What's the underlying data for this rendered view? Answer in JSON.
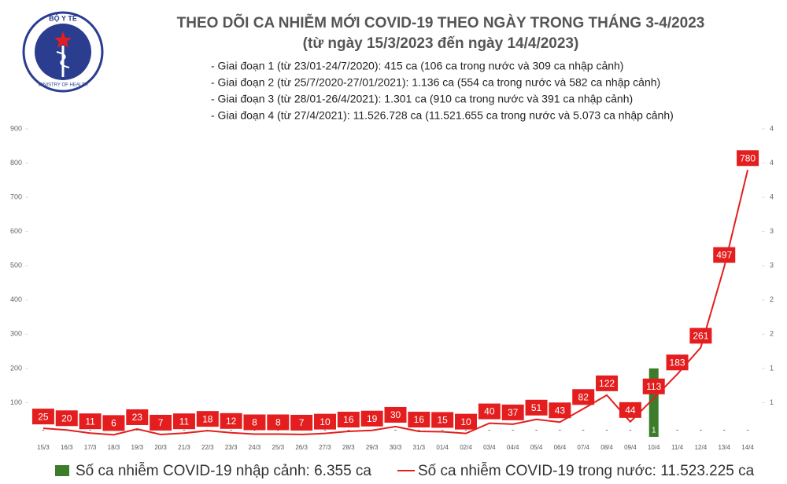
{
  "logo": {
    "top": "BỘ Y TẾ",
    "bottom": "MINISTRY OF HEALTH"
  },
  "chart_data": {
    "type": "bar-line",
    "title": "THEO DÕI CA NHIỄM MỚI COVID-19 THEO NGÀY TRONG THÁNG 3-4/2023",
    "subtitle": "(từ ngày 15/3/2023 đến ngày 14/4/2023)",
    "annotations": [
      "- Giai đoạn 1 (từ 23/01-24/7/2020): 415 ca (106 ca trong nước và 309 ca nhập cảnh)",
      "- Giai đoạn 2 (từ 25/7/2020-27/01/2021): 1.136 ca (554 ca trong nước và 582 ca nhập cảnh)",
      "- Giai đoạn 3 (từ 28/01-26/4/2021): 1.301 ca (910 ca trong nước và 391 ca nhập cảnh)",
      "- Giai đoạn 4 (từ 27/4/2021): 11.526.728 ca (11.521.655 ca trong nước và 5.073 ca nhập cảnh)"
    ],
    "categories": [
      "15/3",
      "16/3",
      "17/3",
      "18/3",
      "19/3",
      "20/3",
      "21/3",
      "22/3",
      "23/3",
      "24/3",
      "25/3",
      "26/3",
      "27/3",
      "28/3",
      "29/3",
      "30/3",
      "31/3",
      "01/4",
      "02/4",
      "03/4",
      "04/4",
      "05/4",
      "06/4",
      "07/4",
      "08/4",
      "09/4",
      "10/4",
      "11/4",
      "12/4",
      "13/4",
      "14/4"
    ],
    "series": [
      {
        "name": "Số ca nhiễm COVID-19 nhập cảnh: 6.355 ca",
        "type": "bar",
        "axis": "y2",
        "color": "#3b7d2b",
        "values": [
          0,
          0,
          0,
          0,
          0,
          0,
          0,
          0,
          0,
          0,
          0,
          0,
          0,
          0,
          0,
          0,
          0,
          0,
          0,
          0,
          0,
          0,
          0,
          0,
          0,
          0,
          1,
          0,
          0,
          0,
          0
        ],
        "value_labels": [
          "-",
          "-",
          "-",
          "-",
          "-",
          "-",
          "-",
          "-",
          "-",
          "-",
          "-",
          "-",
          "-",
          "-",
          "-",
          "-",
          "-",
          "-",
          "-",
          "-",
          "-",
          "-",
          "-",
          "-",
          "-",
          "-",
          "1",
          "-",
          "-",
          "-",
          "-"
        ]
      },
      {
        "name": "Số ca nhiễm COVID-19 trong nước: 11.523.225 ca",
        "type": "line",
        "color": "#e41e1e",
        "values": [
          25,
          20,
          11,
          6,
          23,
          7,
          11,
          18,
          12,
          8,
          8,
          7,
          10,
          16,
          19,
          30,
          16,
          15,
          10,
          40,
          37,
          51,
          43,
          82,
          122,
          44,
          113,
          183,
          261,
          497,
          780
        ]
      }
    ],
    "ylim": [
      0,
      900
    ],
    "yticks": [
      100,
      200,
      300,
      400,
      500,
      600,
      700,
      800,
      900
    ],
    "y2lim": [
      0,
      4.5
    ],
    "y2ticks": [
      {
        "value": 0.5,
        "label": "1"
      },
      {
        "value": 1,
        "label": "1"
      },
      {
        "value": 1.5,
        "label": "2"
      },
      {
        "value": 2,
        "label": "2"
      },
      {
        "value": 2.5,
        "label": "3"
      },
      {
        "value": 3,
        "label": "3"
      },
      {
        "value": 3.5,
        "label": "4"
      },
      {
        "value": 4,
        "label": "4"
      },
      {
        "value": 4.5,
        "label": "4"
      }
    ]
  }
}
